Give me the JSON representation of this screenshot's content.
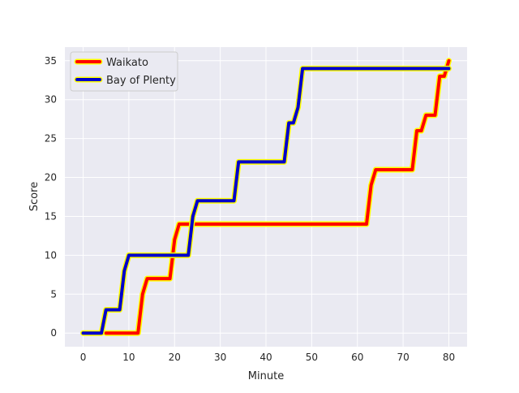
{
  "chart_data": {
    "type": "line",
    "title": "",
    "xlabel": "Minute",
    "ylabel": "Score",
    "xlim": [
      -4,
      84
    ],
    "ylim": [
      -1.75,
      36.75
    ],
    "xticks": [
      0,
      10,
      20,
      30,
      40,
      50,
      60,
      70,
      80
    ],
    "yticks": [
      0,
      5,
      10,
      15,
      20,
      25,
      30,
      35
    ],
    "grid": true,
    "legend_position": "upper-left",
    "series": [
      {
        "name": "Waikato",
        "color": "#ff0000",
        "outline_color": "#ffff00",
        "x": [
          5,
          12,
          13,
          14,
          19,
          20,
          21,
          23,
          24,
          61,
          62,
          63,
          64,
          71,
          72,
          73,
          74,
          75,
          76,
          77,
          78,
          79,
          80
        ],
        "y": [
          0,
          0,
          5,
          7,
          7,
          12,
          14,
          14,
          14,
          14,
          14,
          19,
          21,
          21,
          21,
          26,
          26,
          28,
          28,
          28,
          33,
          33,
          35
        ]
      },
      {
        "name": "Bay of Plenty",
        "color": "#0000cc",
        "outline_color": "#ffff00",
        "x": [
          0,
          4,
          5,
          8,
          9,
          10,
          23,
          24,
          25,
          33,
          34,
          44,
          45,
          46,
          47,
          48,
          80
        ],
        "y": [
          0,
          0,
          3,
          3,
          8,
          10,
          10,
          15,
          17,
          17,
          22,
          22,
          27,
          27,
          29,
          34,
          34
        ]
      }
    ]
  }
}
